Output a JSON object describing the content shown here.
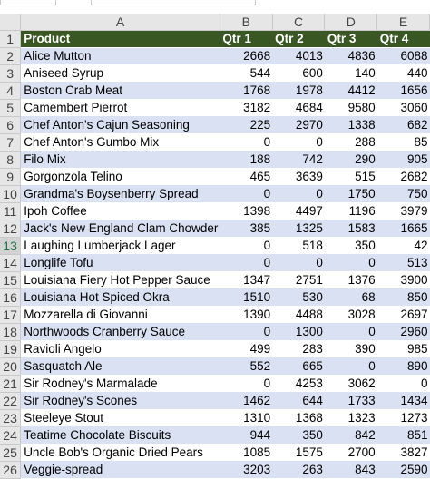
{
  "columns": [
    "A",
    "B",
    "C",
    "D",
    "E"
  ],
  "header": [
    "Product",
    "Qtr 1",
    "Qtr 2",
    "Qtr 3",
    "Qtr 4"
  ],
  "rows": [
    [
      "Alice Mutton",
      "2668",
      "4013",
      "4836",
      "6088"
    ],
    [
      "Aniseed Syrup",
      "544",
      "600",
      "140",
      "440"
    ],
    [
      "Boston Crab Meat",
      "1768",
      "1978",
      "4412",
      "1656"
    ],
    [
      "Camembert Pierrot",
      "3182",
      "4684",
      "9580",
      "3060"
    ],
    [
      "Chef Anton's Cajun Seasoning",
      "225",
      "2970",
      "1338",
      "682"
    ],
    [
      "Chef Anton's Gumbo Mix",
      "0",
      "0",
      "288",
      "85"
    ],
    [
      "Filo Mix",
      "188",
      "742",
      "290",
      "905"
    ],
    [
      "Gorgonzola Telino",
      "465",
      "3639",
      "515",
      "2682"
    ],
    [
      "Grandma's Boysenberry Spread",
      "0",
      "0",
      "1750",
      "750"
    ],
    [
      "Ipoh Coffee",
      "1398",
      "4497",
      "1196",
      "3979"
    ],
    [
      "Jack's New England Clam Chowder",
      "385",
      "1325",
      "1583",
      "1665"
    ],
    [
      "Laughing Lumberjack Lager",
      "0",
      "518",
      "350",
      "42"
    ],
    [
      "Longlife Tofu",
      "0",
      "0",
      "0",
      "513"
    ],
    [
      "Louisiana Fiery Hot Pepper Sauce",
      "1347",
      "2751",
      "1376",
      "3900"
    ],
    [
      "Louisiana Hot Spiced Okra",
      "1510",
      "530",
      "68",
      "850"
    ],
    [
      "Mozzarella di Giovanni",
      "1390",
      "4488",
      "3028",
      "2697"
    ],
    [
      "Northwoods Cranberry Sauce",
      "0",
      "1300",
      "0",
      "2960"
    ],
    [
      "Ravioli Angelo",
      "499",
      "283",
      "390",
      "985"
    ],
    [
      "Sasquatch Ale",
      "552",
      "665",
      "0",
      "890"
    ],
    [
      "Sir Rodney's Marmalade",
      "0",
      "4253",
      "3062",
      "0"
    ],
    [
      "Sir Rodney's Scones",
      "1462",
      "644",
      "1733",
      "1434"
    ],
    [
      "Steeleye Stout",
      "1310",
      "1368",
      "1323",
      "1273"
    ],
    [
      "Teatime Chocolate Biscuits",
      "944",
      "350",
      "842",
      "851"
    ],
    [
      "Uncle Bob's Organic Dried Pears",
      "1085",
      "1575",
      "2700",
      "3827"
    ],
    [
      "Veggie-spread",
      "3203",
      "263",
      "843",
      "2590"
    ]
  ],
  "selected_row": 13,
  "colors": {
    "header_fill": "#385723",
    "band_fill": "#d9e1f2",
    "selected_row_header": "#1e7145"
  }
}
